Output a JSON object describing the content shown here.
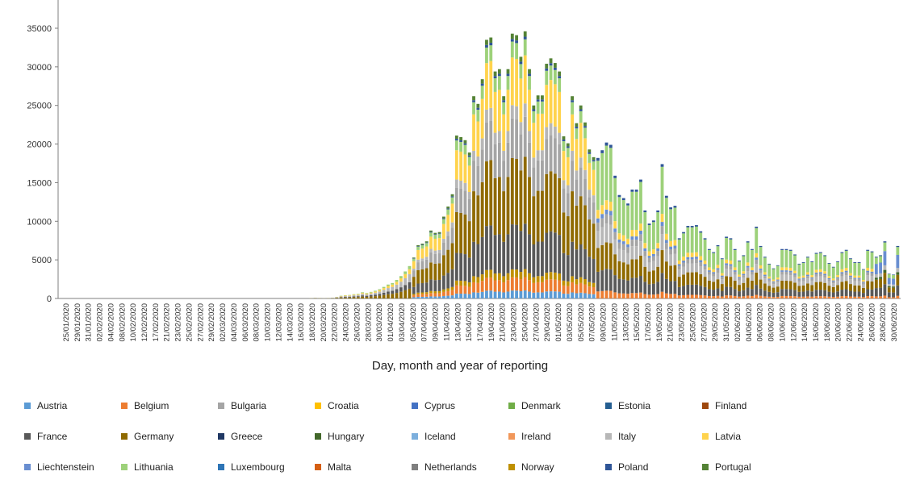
{
  "chart_data": {
    "type": "bar",
    "stacked": true,
    "xlabel": "Day, month and year of reporting",
    "ylabel": "",
    "ylim": [
      0,
      35000
    ],
    "yticks": [
      0,
      5000,
      10000,
      15000,
      20000,
      25000,
      30000,
      35000
    ],
    "x_tick_labels": [
      "25/01/2020",
      "29/01/2020",
      "31/01/2020",
      "02/02/2020",
      "04/02/2020",
      "08/02/2020",
      "10/02/2020",
      "12/02/2020",
      "17/02/2020",
      "21/02/2020",
      "23/02/2020",
      "25/02/2020",
      "27/02/2020",
      "29/02/2020",
      "02/03/2020",
      "04/03/2020",
      "06/03/2020",
      "08/03/2020",
      "10/03/2020",
      "12/03/2020",
      "14/03/2020",
      "16/03/2020",
      "18/03/2020",
      "20/03/2020",
      "22/03/2020",
      "24/03/2020",
      "26/03/2020",
      "28/03/2020",
      "30/03/2020",
      "01/04/2020",
      "03/04/2020",
      "05/04/2020",
      "07/04/2020",
      "09/04/2020",
      "11/04/2020",
      "13/04/2020",
      "15/04/2020",
      "17/04/2020",
      "19/04/2020",
      "21/04/2020",
      "23/04/2020",
      "25/04/2020",
      "27/04/2020",
      "29/04/2020",
      "01/05/2020",
      "03/05/2020",
      "05/05/2020",
      "07/05/2020",
      "09/05/2020",
      "11/05/2020",
      "13/05/2020",
      "15/05/2020",
      "17/05/2020",
      "19/05/2020",
      "21/05/2020",
      "23/05/2020",
      "25/05/2020",
      "27/05/2020",
      "29/05/2020",
      "31/05/2020",
      "02/06/2020",
      "04/06/2020",
      "06/06/2020",
      "08/06/2020",
      "10/06/2020",
      "12/06/2020",
      "14/06/2020",
      "16/06/2020",
      "18/06/2020",
      "20/06/2020",
      "22/06/2020",
      "24/06/2020",
      "26/06/2020",
      "28/06/2020",
      "30/06/2020"
    ],
    "totals": [
      0,
      0,
      0,
      0,
      0,
      0,
      0,
      0,
      0,
      0,
      0,
      0,
      0,
      0,
      0,
      0,
      0,
      0,
      0,
      0,
      0,
      0,
      0,
      0,
      0,
      0,
      0,
      0,
      0,
      0,
      0,
      0,
      0,
      0,
      0,
      0,
      0,
      0,
      0,
      0,
      0,
      0,
      0,
      0,
      0,
      0,
      0,
      0,
      0,
      0,
      0,
      0,
      0,
      0,
      0,
      0,
      0,
      0,
      50,
      80,
      60,
      40,
      60,
      90,
      200,
      350,
      420,
      450,
      550,
      600,
      800,
      700,
      850,
      1000,
      1200,
      1500,
      1800,
      2000,
      2400,
      2900,
      3500,
      4200,
      5300,
      6900,
      7100,
      7400,
      8800,
      8500,
      8600,
      10600,
      11900,
      13500,
      21100,
      20900,
      20500,
      18900,
      26200,
      25200,
      28400,
      33500,
      33800,
      29400,
      29700,
      26200,
      29700,
      34300,
      34100,
      31300,
      34600,
      29700,
      25000,
      26300,
      26300,
      30400,
      31100,
      30500,
      29400,
      21000,
      20100,
      26200,
      22700,
      25000,
      22800,
      19300,
      18300,
      18200,
      19200,
      20200,
      19900,
      15900,
      13400,
      13000,
      12300,
      14100,
      14100,
      15400,
      11400,
      9700,
      10100,
      11400,
      17400,
      13300,
      11800,
      12000,
      7800,
      8600,
      9400,
      9400,
      9500,
      8700,
      7800,
      6400,
      6000,
      6900,
      5200,
      8000,
      7800,
      6400,
      4900,
      5600,
      7400,
      6400,
      9300,
      6800,
      5400,
      4500,
      3900,
      4300,
      6400,
      6400,
      6300,
      5700,
      4500,
      4700,
      5400,
      4800,
      5900,
      6000,
      5600,
      4600,
      4100,
      4800,
      6000,
      6300,
      5200,
      4700,
      4700,
      3800,
      6300,
      6100,
      5400,
      5600,
      7400,
      3200,
      3100,
      6800
    ]
  },
  "legend": [
    {
      "label": "Austria",
      "color": "#5b9bd5"
    },
    {
      "label": "Belgium",
      "color": "#ed7d31"
    },
    {
      "label": "Bulgaria",
      "color": "#a5a5a5"
    },
    {
      "label": "Croatia",
      "color": "#ffc000"
    },
    {
      "label": "Cyprus",
      "color": "#4472c4"
    },
    {
      "label": "Denmark",
      "color": "#70ad47"
    },
    {
      "label": "Estonia",
      "color": "#255e91"
    },
    {
      "label": "Finland",
      "color": "#9e480e"
    },
    {
      "label": "France",
      "color": "#595959"
    },
    {
      "label": "Germany",
      "color": "#8f6a00"
    },
    {
      "label": "Greece",
      "color": "#203864"
    },
    {
      "label": "Hungary",
      "color": "#43682b"
    },
    {
      "label": "Iceland",
      "color": "#7cafdd"
    },
    {
      "label": "Ireland",
      "color": "#f1975a"
    },
    {
      "label": "Italy",
      "color": "#b7b7b7"
    },
    {
      "label": "Latvia",
      "color": "#ffd34d"
    },
    {
      "label": "Liechtenstein",
      "color": "#698ed0"
    },
    {
      "label": "Lithuania",
      "color": "#9dd17a"
    },
    {
      "label": "Luxembourg",
      "color": "#2e75b6"
    },
    {
      "label": "Malta",
      "color": "#d55f13"
    },
    {
      "label": "Netherlands",
      "color": "#7f7f7f"
    },
    {
      "label": "Norway",
      "color": "#bf9000"
    },
    {
      "label": "Poland",
      "color": "#2f5597"
    },
    {
      "label": "Portugal",
      "color": "#548235"
    }
  ]
}
